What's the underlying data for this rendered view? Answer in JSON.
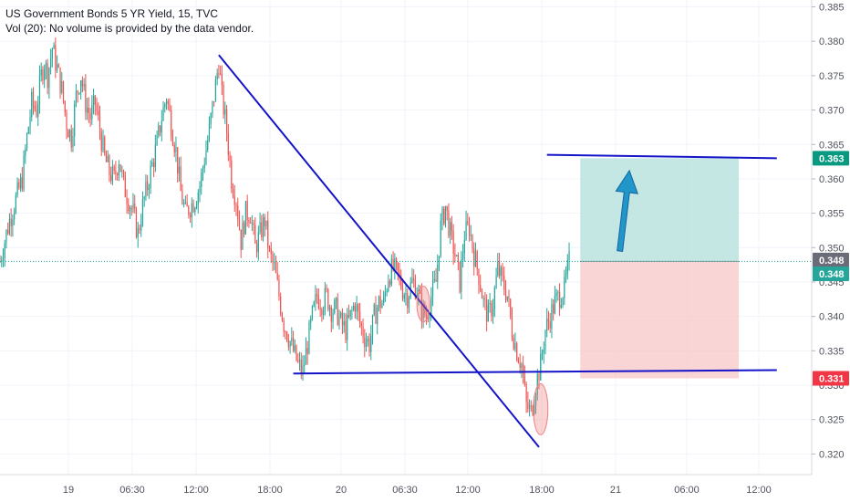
{
  "header": {
    "title": "US Government Bonds 5 YR Yield, 15, TVC",
    "volume_note": "Vol (20): No volume is provided by the data vendor."
  },
  "colors": {
    "up": "#26a69a",
    "down": "#ef5350",
    "trendline": "#1414c8",
    "arrow": "#2196c8",
    "profit_zone": "#b2dfdb",
    "loss_zone": "#f8c7c7",
    "circle_marker": "#f08080",
    "price_line": "#26a69a"
  },
  "chart_data": {
    "type": "candlestick",
    "title": "US Government Bonds 5 YR Yield, 15, TVC",
    "ylim": [
      0.317,
      0.386
    ],
    "y_ticks": [
      "0.385",
      "0.380",
      "0.375",
      "0.370",
      "0.365",
      "0.360",
      "0.355",
      "0.350",
      "0.345",
      "0.340",
      "0.335",
      "0.330",
      "0.325",
      "0.320"
    ],
    "x_ticks": [
      "19",
      "06:30",
      "12:00",
      "18:00",
      "20",
      "06:30",
      "12:00",
      "18:00",
      "21",
      "06:00",
      "12:00"
    ],
    "price_badges": {
      "target": "0.363",
      "current": "0.348",
      "last": "0.348",
      "stop": "0.331"
    },
    "series": [
      {
        "name": "",
        "close_path": [
          [
            0,
            0.348
          ],
          [
            6,
            0.354
          ],
          [
            10,
            0.357
          ],
          [
            14,
            0.36
          ],
          [
            17,
            0.366
          ],
          [
            20,
            0.371
          ],
          [
            23,
            0.37
          ],
          [
            26,
            0.375
          ],
          [
            28,
            0.377
          ],
          [
            30,
            0.375
          ],
          [
            33,
            0.379
          ],
          [
            36,
            0.376
          ],
          [
            39,
            0.373
          ],
          [
            42,
            0.368
          ],
          [
            45,
            0.366
          ],
          [
            48,
            0.372
          ],
          [
            51,
            0.375
          ],
          [
            54,
            0.371
          ],
          [
            57,
            0.369
          ],
          [
            60,
            0.371
          ],
          [
            63,
            0.367
          ],
          [
            66,
            0.363
          ],
          [
            69,
            0.361
          ],
          [
            72,
            0.36
          ],
          [
            75,
            0.363
          ],
          [
            78,
            0.359
          ],
          [
            81,
            0.357
          ],
          [
            84,
            0.355
          ],
          [
            87,
            0.352
          ],
          [
            90,
            0.356
          ],
          [
            93,
            0.359
          ],
          [
            96,
            0.362
          ],
          [
            99,
            0.365
          ],
          [
            102,
            0.369
          ],
          [
            105,
            0.372
          ],
          [
            108,
            0.368
          ],
          [
            111,
            0.364
          ],
          [
            114,
            0.358
          ],
          [
            117,
            0.355
          ],
          [
            120,
            0.356
          ],
          [
            123,
            0.357
          ],
          [
            126,
            0.359
          ],
          [
            129,
            0.363
          ],
          [
            132,
            0.367
          ],
          [
            135,
            0.372
          ],
          [
            138,
            0.377
          ],
          [
            140,
            0.372
          ],
          [
            143,
            0.367
          ],
          [
            146,
            0.36
          ],
          [
            149,
            0.357
          ],
          [
            152,
            0.351
          ],
          [
            155,
            0.355
          ],
          [
            158,
            0.355
          ],
          [
            161,
            0.35
          ],
          [
            164,
            0.352
          ],
          [
            167,
            0.354
          ],
          [
            170,
            0.349
          ],
          [
            173,
            0.347
          ],
          [
            176,
            0.343
          ],
          [
            179,
            0.339
          ],
          [
            182,
            0.337
          ],
          [
            185,
            0.335
          ],
          [
            188,
            0.333
          ],
          [
            191,
            0.332
          ],
          [
            194,
            0.336
          ],
          [
            197,
            0.34
          ],
          [
            200,
            0.343
          ],
          [
            203,
            0.342
          ],
          [
            206,
            0.343
          ],
          [
            209,
            0.341
          ],
          [
            212,
            0.341
          ],
          [
            215,
            0.339
          ],
          [
            218,
            0.338
          ],
          [
            221,
            0.34
          ],
          [
            224,
            0.342
          ],
          [
            227,
            0.339
          ],
          [
            230,
            0.337
          ],
          [
            233,
            0.336
          ],
          [
            236,
            0.34
          ],
          [
            239,
            0.342
          ],
          [
            242,
            0.342
          ],
          [
            245,
            0.346
          ],
          [
            248,
            0.347
          ],
          [
            251,
            0.346
          ],
          [
            254,
            0.344
          ],
          [
            257,
            0.343
          ],
          [
            260,
            0.345
          ],
          [
            263,
            0.344
          ],
          [
            266,
            0.341
          ],
          [
            269,
            0.34
          ],
          [
            272,
            0.343
          ],
          [
            275,
            0.345
          ],
          [
            278,
            0.353
          ],
          [
            281,
            0.356
          ],
          [
            284,
            0.352
          ],
          [
            287,
            0.349
          ],
          [
            290,
            0.345
          ],
          [
            293,
            0.352
          ],
          [
            296,
            0.353
          ],
          [
            299,
            0.349
          ],
          [
            302,
            0.346
          ],
          [
            305,
            0.342
          ],
          [
            308,
            0.34
          ],
          [
            311,
            0.342
          ],
          [
            314,
            0.347
          ],
          [
            317,
            0.345
          ],
          [
            320,
            0.343
          ],
          [
            323,
            0.338
          ],
          [
            326,
            0.335
          ],
          [
            329,
            0.333
          ],
          [
            332,
            0.327
          ],
          [
            335,
            0.326
          ],
          [
            338,
            0.33
          ],
          [
            341,
            0.333
          ],
          [
            344,
            0.338
          ],
          [
            347,
            0.34
          ],
          [
            350,
            0.342
          ],
          [
            353,
            0.343
          ],
          [
            356,
            0.344
          ],
          [
            359,
            0.348
          ]
        ]
      }
    ],
    "annotations": {
      "trendlines": [
        {
          "from": [
            138,
            0.378
          ],
          "to": [
            340,
            0.321
          ]
        },
        {
          "from": [
            185,
            0.3317
          ],
          "to": [
            490,
            0.3322
          ]
        },
        {
          "from": [
            345,
            0.3635
          ],
          "to": [
            490,
            0.363
          ]
        }
      ],
      "position": {
        "x_from": 366,
        "x_to": 466,
        "entry": 0.348,
        "target": 0.363,
        "stop": 0.331
      },
      "arrow": {
        "from": [
          391,
          0.3495
        ],
        "to": [
          397,
          0.3612
        ]
      },
      "circles": [
        {
          "center": [
            267,
            0.3418
          ],
          "rx": 7,
          "ry": 0.0026
        },
        {
          "center": [
            341,
            0.3265
          ],
          "rx": 8,
          "ry": 0.0037
        }
      ],
      "x_span": 512
    }
  }
}
